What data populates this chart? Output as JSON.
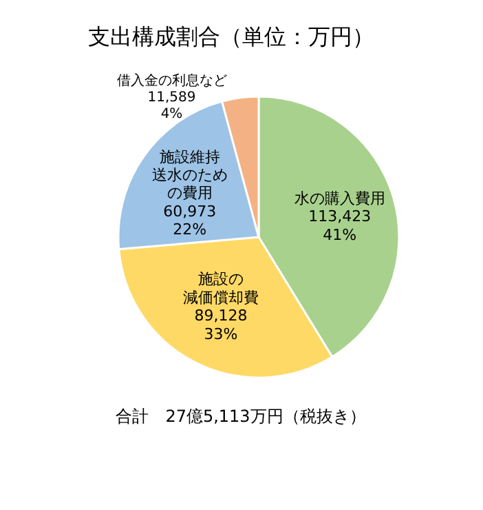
{
  "chart_data": {
    "type": "pie",
    "title": "支出構成割合（単位：万円）",
    "categories": [
      "水の購入費用",
      "施設の減価償却費",
      "施設維持送水のための費用",
      "借入金の利息など"
    ],
    "values": [
      113423,
      89128,
      60973,
      11589
    ],
    "value_labels": [
      "113,423\n41%",
      "89,128\n33%",
      "60,973\n22%",
      "11,589\n4%"
    ],
    "colors": [
      "#a9d18e",
      "#ffd966",
      "#9dc3e6",
      "#f4b183"
    ],
    "annotations": [
      "合計　27億5,113万円（税抜き）"
    ]
  }
}
